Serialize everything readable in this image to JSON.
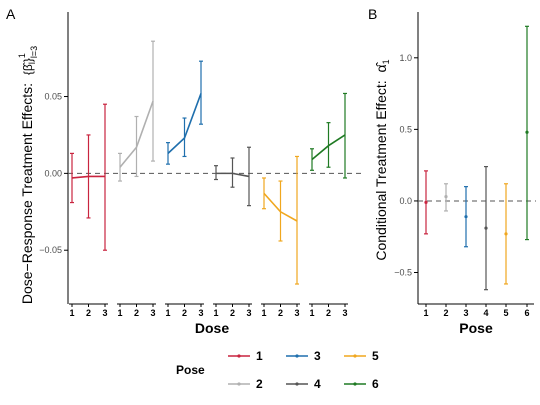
{
  "panel_labels": {
    "a": "A",
    "b": "B"
  },
  "legend": {
    "title": "Pose",
    "entries": [
      {
        "label": "1",
        "color": "#c9243f"
      },
      {
        "label": "3",
        "color": "#1f6fad"
      },
      {
        "label": "5",
        "color": "#f0a71f"
      },
      {
        "label": "2",
        "color": "#b0b0b0"
      },
      {
        "label": "4",
        "color": "#555555"
      },
      {
        "label": "6",
        "color": "#1f7a23"
      }
    ]
  },
  "chart_data": [
    {
      "type": "line",
      "panel": "A",
      "xlabel": "Dose",
      "ylabel": "Dose−Response Treatment Effects:",
      "ylabel_math": "{β̂_l}^1_{l=3}",
      "ylim": [
        -0.085,
        0.105
      ],
      "yticks": [
        0.05,
        0.0,
        -0.05
      ],
      "ytick_labels": [
        "0.05",
        "0.00",
        "−0.05"
      ],
      "x": [
        1,
        2,
        3
      ],
      "xtick_labels": [
        "1",
        "2",
        "3"
      ],
      "reference_line": 0,
      "series": [
        {
          "name": "1",
          "color": "#c9243f",
          "values": [
            -0.003,
            -0.002,
            -0.002
          ],
          "lower": [
            -0.019,
            -0.029,
            -0.05
          ],
          "upper": [
            0.013,
            0.025,
            0.045
          ]
        },
        {
          "name": "2",
          "color": "#b0b0b0",
          "values": [
            0.004,
            0.017,
            0.047
          ],
          "lower": [
            -0.005,
            -0.002,
            0.008
          ],
          "upper": [
            0.013,
            0.037,
            0.086
          ]
        },
        {
          "name": "3",
          "color": "#1f6fad",
          "values": [
            0.013,
            0.023,
            0.052
          ],
          "lower": [
            0.006,
            0.011,
            0.032
          ],
          "upper": [
            0.02,
            0.036,
            0.073
          ]
        },
        {
          "name": "4",
          "color": "#555555",
          "values": [
            0.0,
            0.0,
            -0.002
          ],
          "lower": [
            -0.004,
            -0.009,
            -0.021
          ],
          "upper": [
            0.005,
            0.01,
            0.017
          ]
        },
        {
          "name": "5",
          "color": "#f0a71f",
          "values": [
            -0.013,
            -0.025,
            -0.031
          ],
          "lower": [
            -0.023,
            -0.044,
            -0.072
          ],
          "upper": [
            -0.003,
            -0.005,
            0.011
          ]
        },
        {
          "name": "6",
          "color": "#1f7a23",
          "values": [
            0.009,
            0.018,
            0.025
          ],
          "lower": [
            0.002,
            0.004,
            -0.003
          ],
          "upper": [
            0.016,
            0.033,
            0.052
          ]
        }
      ]
    },
    {
      "type": "scatter",
      "panel": "B",
      "xlabel": "Pose",
      "ylabel": "Conditional Treatment Effect:",
      "ylabel_math": "α̂_1",
      "ylim": [
        -0.72,
        1.32
      ],
      "yticks": [
        1.0,
        0.5,
        0.0,
        -0.5
      ],
      "ytick_labels": [
        "1.0",
        "0.5",
        "0.0",
        "−0.5"
      ],
      "categories": [
        "1",
        "2",
        "3",
        "4",
        "5",
        "6"
      ],
      "reference_line": 0,
      "points": [
        {
          "pose": "1",
          "color": "#c9243f",
          "value": -0.01,
          "lower": -0.23,
          "upper": 0.21
        },
        {
          "pose": "2",
          "color": "#b0b0b0",
          "value": 0.03,
          "lower": -0.07,
          "upper": 0.12
        },
        {
          "pose": "3",
          "color": "#1f6fad",
          "value": -0.11,
          "lower": -0.32,
          "upper": 0.1
        },
        {
          "pose": "4",
          "color": "#555555",
          "value": -0.19,
          "lower": -0.62,
          "upper": 0.24
        },
        {
          "pose": "5",
          "color": "#f0a71f",
          "value": -0.23,
          "lower": -0.58,
          "upper": 0.12
        },
        {
          "pose": "6",
          "color": "#1f7a23",
          "value": 0.48,
          "lower": -0.27,
          "upper": 1.22
        }
      ]
    }
  ]
}
